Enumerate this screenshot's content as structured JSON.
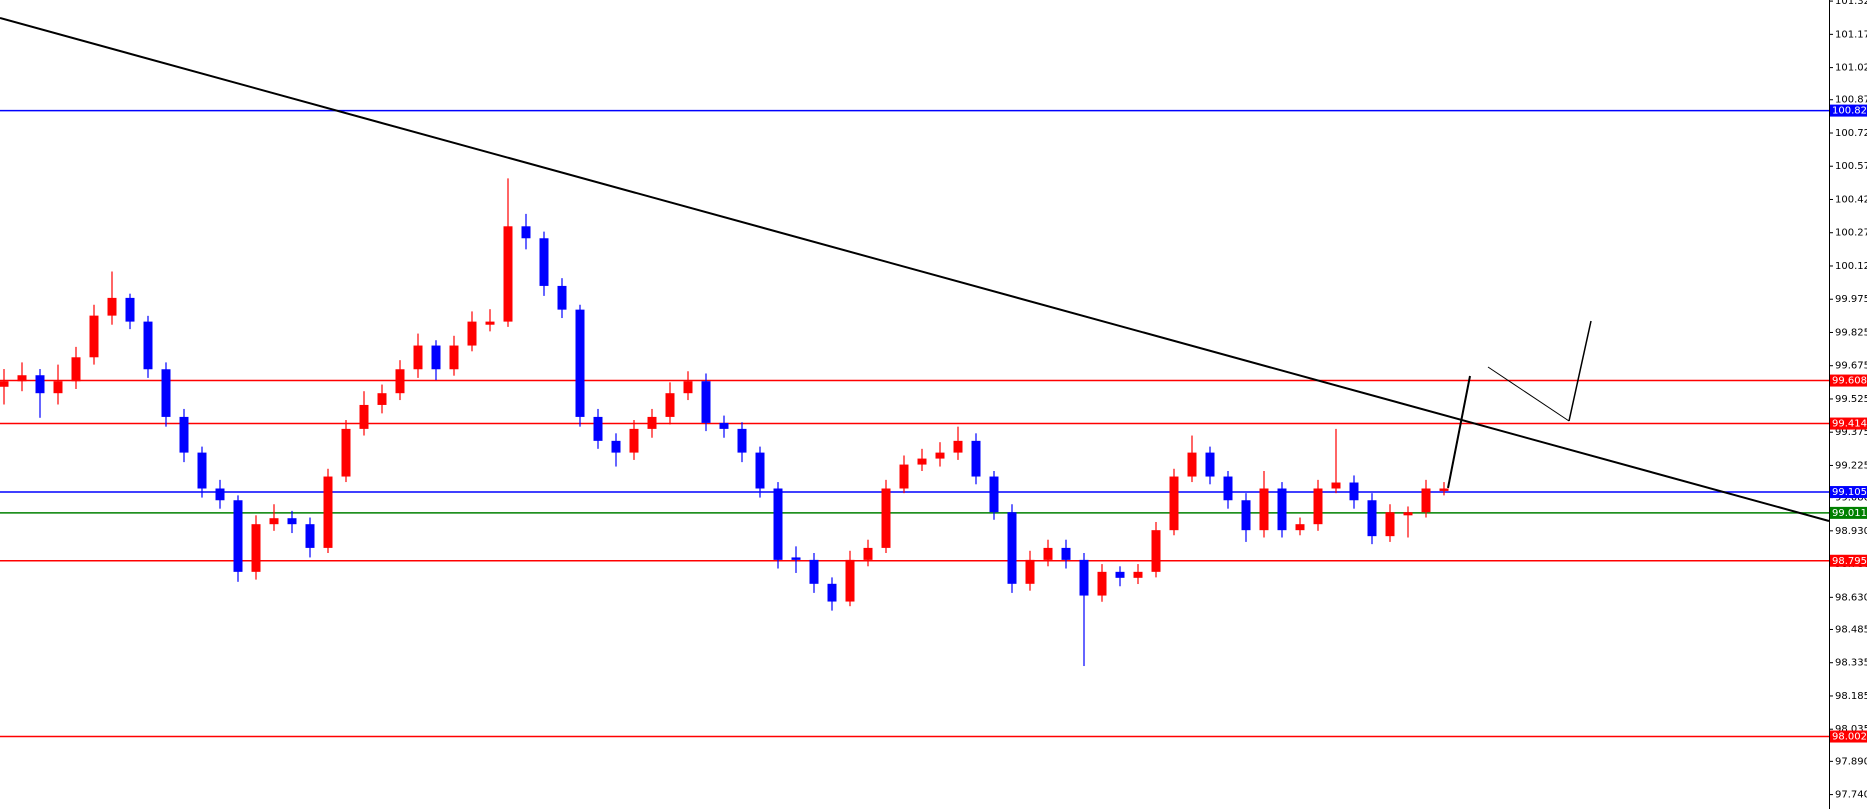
{
  "chart_data": {
    "type": "candlestick",
    "up_color": "#ff0000",
    "down_color": "#0000ff",
    "ylim": [
      97.675,
      101.325
    ],
    "yticks": [
      {
        "value": 101.32,
        "label": "101.320"
      },
      {
        "value": 101.17,
        "label": "101.170"
      },
      {
        "value": 101.02,
        "label": "101.020"
      },
      100.875,
      100.725,
      100.575,
      100.425,
      100.275,
      100.125,
      99.975,
      99.825,
      99.675,
      99.525,
      99.375,
      99.225,
      {
        "value": 99.08,
        "label": "99.080"
      },
      {
        "value": 98.93,
        "label": "98.930"
      },
      {
        "value": 98.78,
        "label": "98.780"
      },
      {
        "value": 98.63,
        "label": "98.630"
      },
      98.485,
      98.335,
      98.185,
      98.035,
      {
        "value": 97.89,
        "label": "97.890"
      },
      {
        "value": 97.74,
        "label": "97.740"
      }
    ],
    "levels": [
      {
        "value": 100.826,
        "color": "#0000ff"
      },
      {
        "value": 99.608,
        "color": "#ff0000"
      },
      {
        "value": 99.414,
        "color": "#ff0000"
      },
      {
        "value": 99.105,
        "color": "#0000ff"
      },
      {
        "value": 99.011,
        "color": "#008000"
      },
      {
        "value": 98.795,
        "color": "#ff0000"
      },
      {
        "value": 98.002,
        "color": "#ff0000"
      }
    ],
    "candles": [
      [
        99.58,
        99.66,
        99.5,
        99.605
      ],
      [
        99.605,
        99.69,
        99.56,
        99.632
      ],
      [
        99.632,
        99.66,
        99.44,
        99.551
      ],
      [
        99.551,
        99.68,
        99.5,
        99.605
      ],
      [
        99.605,
        99.76,
        99.57,
        99.713
      ],
      [
        99.713,
        99.95,
        99.68,
        99.901
      ],
      [
        99.901,
        100.1,
        99.86,
        99.981
      ],
      [
        99.981,
        100,
        99.84,
        99.874
      ],
      [
        99.874,
        99.9,
        99.62,
        99.659
      ],
      [
        99.659,
        99.69,
        99.4,
        99.444
      ],
      [
        99.444,
        99.48,
        99.24,
        99.283
      ],
      [
        99.283,
        99.31,
        99.08,
        99.121
      ],
      [
        99.121,
        99.16,
        99.03,
        99.068
      ],
      [
        99.068,
        99.09,
        98.7,
        98.745
      ],
      [
        98.745,
        99,
        98.71,
        98.96
      ],
      [
        98.96,
        99.05,
        98.93,
        98.987
      ],
      [
        98.987,
        99.02,
        98.92,
        98.96
      ],
      [
        98.96,
        98.99,
        98.81,
        98.853
      ],
      [
        98.853,
        99.21,
        98.83,
        99.175
      ],
      [
        99.175,
        99.43,
        99.15,
        99.39
      ],
      [
        99.39,
        99.56,
        99.36,
        99.498
      ],
      [
        99.498,
        99.59,
        99.46,
        99.551
      ],
      [
        99.551,
        99.7,
        99.52,
        99.659
      ],
      [
        99.659,
        99.82,
        99.62,
        99.766
      ],
      [
        99.766,
        99.79,
        99.61,
        99.659
      ],
      [
        99.659,
        99.81,
        99.63,
        99.766
      ],
      [
        99.766,
        99.92,
        99.74,
        99.874
      ],
      [
        99.86,
        99.93,
        99.83,
        99.874
      ],
      [
        99.874,
        100.52,
        99.85,
        100.304
      ],
      [
        100.304,
        100.36,
        100.2,
        100.25
      ],
      [
        100.25,
        100.28,
        99.99,
        100.035
      ],
      [
        100.035,
        100.07,
        99.89,
        99.928
      ],
      [
        99.928,
        99.95,
        99.4,
        99.444
      ],
      [
        99.444,
        99.48,
        99.3,
        99.336
      ],
      [
        99.336,
        99.37,
        99.22,
        99.283
      ],
      [
        99.283,
        99.43,
        99.25,
        99.39
      ],
      [
        99.39,
        99.48,
        99.35,
        99.444
      ],
      [
        99.444,
        99.6,
        99.41,
        99.551
      ],
      [
        99.551,
        99.65,
        99.52,
        99.605
      ],
      [
        99.605,
        99.64,
        99.38,
        99.417
      ],
      [
        99.417,
        99.45,
        99.35,
        99.39
      ],
      [
        99.39,
        99.42,
        99.24,
        99.283
      ],
      [
        99.283,
        99.31,
        99.08,
        99.121
      ],
      [
        99.121,
        99.15,
        98.76,
        98.799
      ],
      [
        98.81,
        98.86,
        98.74,
        98.799
      ],
      [
        98.799,
        98.83,
        98.65,
        98.691
      ],
      [
        98.691,
        98.72,
        98.57,
        98.611
      ],
      [
        98.611,
        98.84,
        98.59,
        98.799
      ],
      [
        98.799,
        98.89,
        98.77,
        98.853
      ],
      [
        98.853,
        99.16,
        98.83,
        99.121
      ],
      [
        99.121,
        99.27,
        99.1,
        99.229
      ],
      [
        99.229,
        99.3,
        99.2,
        99.256
      ],
      [
        99.256,
        99.33,
        99.22,
        99.283
      ],
      [
        99.283,
        99.4,
        99.25,
        99.336
      ],
      [
        99.336,
        99.37,
        99.14,
        99.175
      ],
      [
        99.175,
        99.2,
        98.98,
        99.014
      ],
      [
        99.014,
        99.05,
        98.65,
        98.691
      ],
      [
        98.691,
        98.84,
        98.66,
        98.799
      ],
      [
        98.799,
        98.89,
        98.77,
        98.853
      ],
      [
        98.853,
        98.89,
        98.76,
        98.799
      ],
      [
        98.799,
        98.83,
        98.32,
        98.638
      ],
      [
        98.638,
        98.78,
        98.61,
        98.745
      ],
      [
        98.745,
        98.77,
        98.68,
        98.718
      ],
      [
        98.718,
        98.78,
        98.69,
        98.745
      ],
      [
        98.745,
        98.97,
        98.72,
        98.933
      ],
      [
        98.933,
        99.21,
        98.91,
        99.175
      ],
      [
        99.175,
        99.36,
        99.15,
        99.283
      ],
      [
        99.283,
        99.31,
        99.14,
        99.175
      ],
      [
        99.175,
        99.2,
        99.03,
        99.068
      ],
      [
        99.068,
        99.1,
        98.88,
        98.933
      ],
      [
        98.933,
        99.2,
        98.9,
        99.121
      ],
      [
        99.121,
        99.15,
        98.9,
        98.933
      ],
      [
        98.933,
        98.99,
        98.91,
        98.96
      ],
      [
        98.96,
        99.16,
        98.93,
        99.121
      ],
      [
        99.121,
        99.39,
        99.1,
        99.148
      ],
      [
        99.148,
        99.18,
        99.03,
        99.068
      ],
      [
        99.068,
        99.1,
        98.87,
        98.906
      ],
      [
        98.906,
        99.05,
        98.88,
        99.014
      ],
      [
        99.0,
        99.04,
        98.9,
        99.014
      ],
      [
        99.014,
        99.16,
        98.99,
        99.121
      ],
      [
        99.11,
        99.15,
        99.09,
        99.121
      ]
    ]
  }
}
